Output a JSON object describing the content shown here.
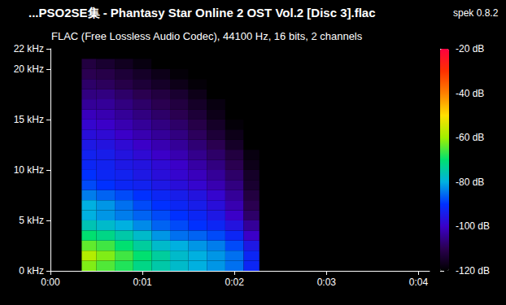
{
  "chart_data": {
    "type": "heatmap",
    "title": "...PSO2SE集 - Phantasy Star Online 2 OST Vol.2 [Disc 3].flac",
    "subtitle": "FLAC (Free Lossless Audio Codec), 44100 Hz, 16 bits, 2 channels",
    "annotations": [
      "spek 0.8.2"
    ],
    "grid": false,
    "xlim": [
      0,
      4.12
    ],
    "xticks": [
      {
        "value": 0,
        "label": "0:00"
      },
      {
        "value": 1,
        "label": "0:01"
      },
      {
        "value": 2,
        "label": "0:02"
      },
      {
        "value": 3,
        "label": "0:03"
      },
      {
        "value": 4,
        "label": "0:04"
      }
    ],
    "ylim": [
      0,
      22
    ],
    "yticks": [
      {
        "value": 0,
        "label": "0 kHz"
      },
      {
        "value": 5,
        "label": "5 kHz"
      },
      {
        "value": 10,
        "label": "10 kHz"
      },
      {
        "value": 15,
        "label": "15 kHz"
      },
      {
        "value": 20,
        "label": "20 kHz"
      },
      {
        "value": 22,
        "label": "22 kHz"
      }
    ],
    "x_bins": [
      0.34,
      0.5,
      0.7,
      0.9,
      1.1,
      1.3,
      1.5,
      1.7,
      1.9,
      2.1,
      2.27
    ],
    "y_bins": [
      0,
      1,
      2,
      3,
      4,
      5,
      6,
      7,
      8,
      9,
      10,
      11,
      12,
      13,
      14,
      15,
      16,
      17,
      18,
      19,
      20,
      21
    ],
    "cells": [
      [
        -62,
        -65,
        -68,
        -72,
        -75,
        -78,
        -80,
        -82,
        -85,
        -92
      ],
      [
        -58,
        -62,
        -66,
        -70,
        -74,
        -78,
        -80,
        -82,
        -85,
        -92
      ],
      [
        -64,
        -66,
        -70,
        -74,
        -78,
        -80,
        -82,
        -84,
        -88,
        -95
      ],
      [
        -70,
        -72,
        -75,
        -78,
        -82,
        -85,
        -86,
        -88,
        -92,
        -100
      ],
      [
        -76,
        -78,
        -80,
        -83,
        -86,
        -88,
        -90,
        -92,
        -96,
        -104
      ],
      [
        -80,
        -82,
        -84,
        -86,
        -88,
        -90,
        -92,
        -95,
        -100,
        -108
      ],
      [
        -80,
        -82,
        -85,
        -88,
        -90,
        -92,
        -94,
        -97,
        -102,
        -110
      ],
      [
        -84,
        -86,
        -88,
        -90,
        -92,
        -94,
        -96,
        -99,
        -104,
        -112
      ],
      [
        -88,
        -90,
        -92,
        -93,
        -95,
        -97,
        -99,
        -102,
        -106,
        -114
      ],
      [
        -90,
        -92,
        -93,
        -95,
        -97,
        -99,
        -101,
        -104,
        -108,
        -115
      ],
      [
        -92,
        -93,
        -95,
        -96,
        -98,
        -100,
        -103,
        -106,
        -110,
        -117
      ],
      [
        -93,
        -94,
        -96,
        -98,
        -100,
        -102,
        -105,
        -108,
        -112,
        -118
      ],
      [
        -95,
        -96,
        -98,
        -100,
        -102,
        -104,
        -107,
        -110,
        -115,
        -120
      ],
      [
        -97,
        -98,
        -100,
        -102,
        -104,
        -106,
        -109,
        -113,
        -117,
        -120
      ],
      [
        -99,
        -100,
        -102,
        -104,
        -106,
        -108,
        -111,
        -115,
        -119,
        -120
      ],
      [
        -101,
        -102,
        -104,
        -106,
        -108,
        -110,
        -113,
        -117,
        -120,
        -120
      ],
      [
        -104,
        -104,
        -106,
        -108,
        -110,
        -112,
        -115,
        -118,
        -120,
        -120
      ],
      [
        -106,
        -106,
        -108,
        -110,
        -112,
        -114,
        -117,
        -120,
        -120,
        -120
      ],
      [
        -108,
        -109,
        -111,
        -113,
        -115,
        -117,
        -119,
        -120,
        -120,
        -120
      ],
      [
        -110,
        -111,
        -113,
        -115,
        -117,
        -119,
        -120,
        -120,
        -120,
        -120
      ],
      [
        -112,
        -114,
        -116,
        -118,
        -120,
        -120,
        -120,
        -120,
        -120,
        -120
      ]
    ],
    "colorbar_range": [
      -120,
      -20
    ],
    "colorbar_ticks": [
      {
        "value": -20,
        "label": "-20 dB"
      },
      {
        "value": -40,
        "label": "-40 dB"
      },
      {
        "value": -60,
        "label": "-60 dB"
      },
      {
        "value": -80,
        "label": "-80 dB"
      },
      {
        "value": -100,
        "label": "-100 dB"
      },
      {
        "value": -120,
        "label": "-120 dB"
      }
    ]
  }
}
